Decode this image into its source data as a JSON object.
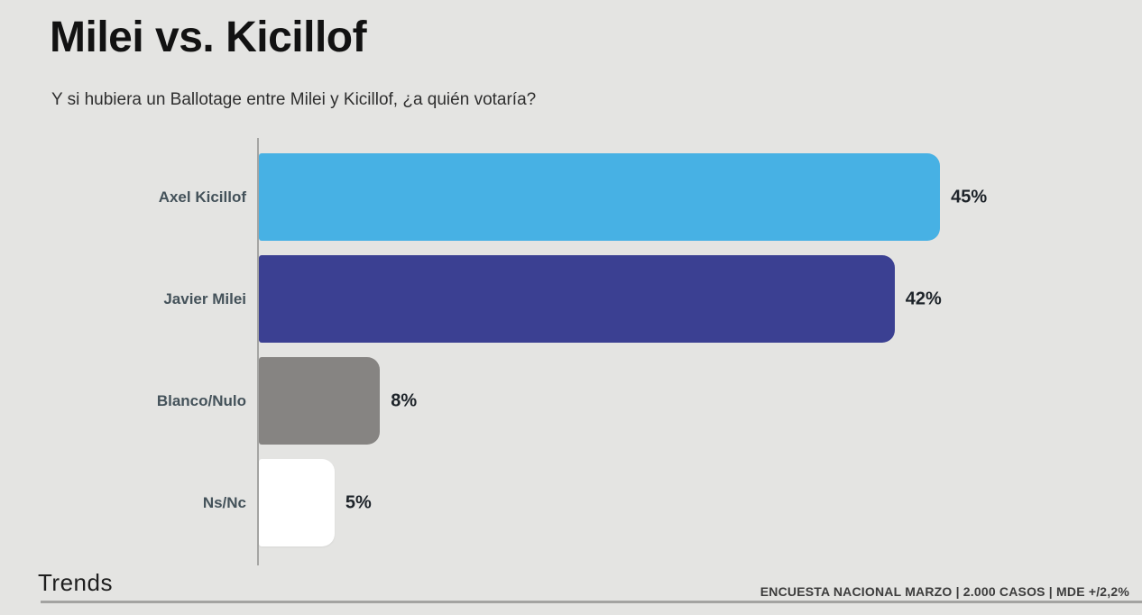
{
  "page": {
    "title": "Milei vs. Kicillof",
    "subtitle": "Y si hubiera un Ballotage entre Milei y Kicillof, ¿a quién votaría?",
    "background_color": "#E4E4E2"
  },
  "chart_data": {
    "type": "bar",
    "orientation": "horizontal",
    "title": "Milei vs. Kicillof",
    "subtitle": "Y si hubiera un Ballotage entre Milei y Kicillof, ¿a quién votaría?",
    "categories": [
      "Axel Kicillof",
      "Javier Milei",
      "Blanco/Nulo",
      "Ns/Nc"
    ],
    "values": [
      45,
      42,
      8,
      5
    ],
    "value_labels": [
      "45%",
      "42%",
      "8%",
      "5%"
    ],
    "bar_colors": [
      "#47B1E4",
      "#3B4092",
      "#868482",
      "#FFFFFF"
    ],
    "label_color": "#44525A",
    "xlim": [
      0,
      50
    ],
    "grid": false,
    "legend": false,
    "axis_line_color": "#A5A5A3"
  },
  "footer": {
    "brand": "Trends",
    "source_note": "ENCUESTA NACIONAL MARZO | 2.000 CASOS | MDE +/2,2%"
  }
}
